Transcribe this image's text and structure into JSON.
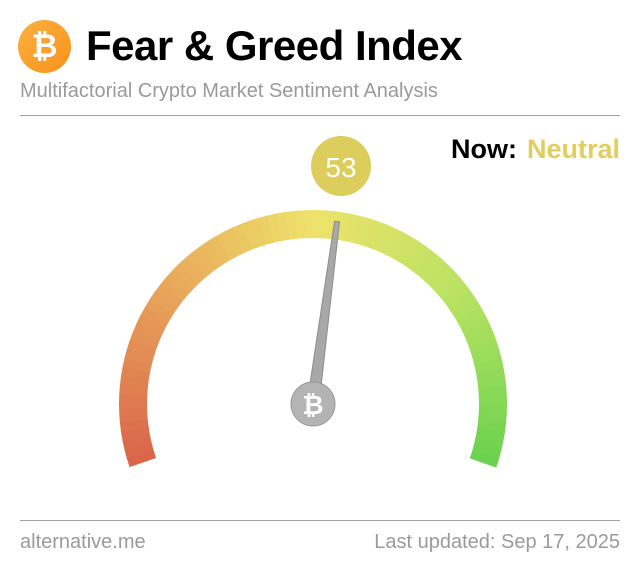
{
  "header": {
    "logo_icon": "bitcoin-icon",
    "title": "Fear & Greed Index",
    "subtitle": "Multifactorial Crypto Market Sentiment Analysis"
  },
  "status": {
    "now_label": "Now:",
    "classification": "Neutral",
    "classification_color": "#e0cf5e"
  },
  "gauge": {
    "value": 53,
    "value_label": "53",
    "min": 0,
    "max": 100,
    "badge_color": "#dccd5c",
    "colors": [
      "#d9654a",
      "#e8a35a",
      "#eee26a",
      "#b8e262",
      "#6bd24f"
    ]
  },
  "footer": {
    "source": "alternative.me",
    "last_updated": "Last updated: Sep 17, 2025"
  }
}
